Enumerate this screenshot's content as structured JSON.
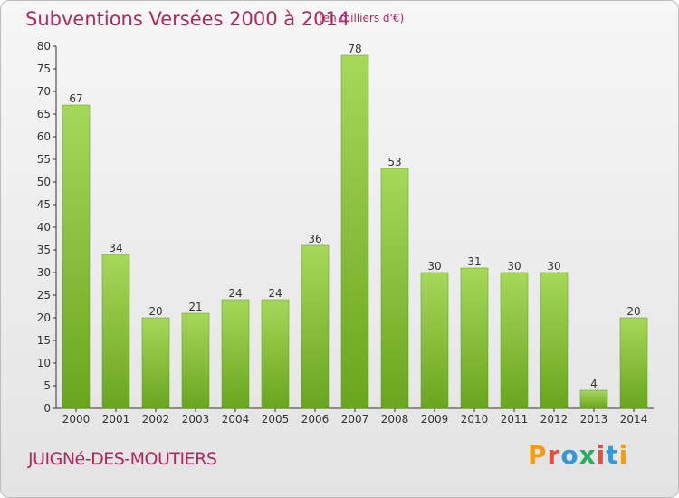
{
  "header": {
    "title": "Subventions Versées 2000 à 2014",
    "unit": "(en milliers d'€)"
  },
  "footer": {
    "commune": "JUIGNé-DES-MOUTIERS",
    "brand": "Proxiti",
    "brand_colors": [
      "#f39c12",
      "#e74c3c",
      "#3498db",
      "#27ae60",
      "#e74c3c",
      "#3498db",
      "#f39c12"
    ]
  },
  "colors": {
    "bar_light": "#a6d85a",
    "bar_dark": "#6aa51e",
    "title": "#b2285e",
    "axis": "#333333"
  },
  "chart_data": {
    "type": "bar",
    "title": "Subventions Versées 2000 à 2014",
    "xlabel": "",
    "ylabel": "",
    "categories": [
      "2000",
      "2001",
      "2002",
      "2003",
      "2004",
      "2005",
      "2006",
      "2007",
      "2008",
      "2009",
      "2010",
      "2011",
      "2012",
      "2013",
      "2014"
    ],
    "values": [
      67,
      34,
      20,
      21,
      24,
      24,
      36,
      78,
      53,
      30,
      31,
      30,
      30,
      4,
      20
    ],
    "ylim": [
      0,
      80
    ],
    "yticks": [
      0,
      5,
      10,
      15,
      20,
      25,
      30,
      35,
      40,
      45,
      50,
      55,
      60,
      65,
      70,
      75,
      80
    ],
    "grid": false,
    "data_labels": true
  }
}
